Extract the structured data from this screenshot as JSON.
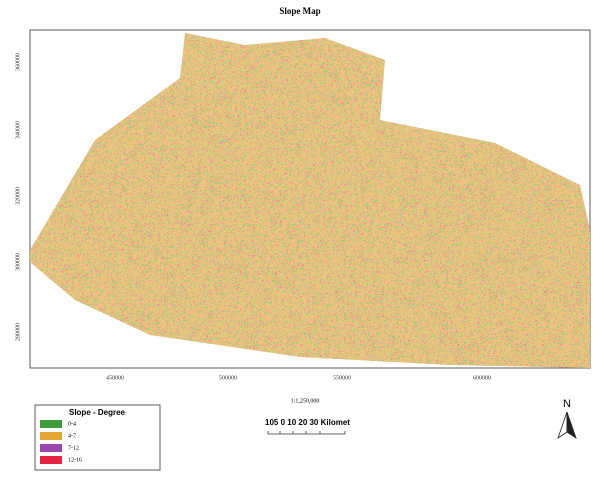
{
  "title": "Slope Map",
  "x_ticks": [
    "450000",
    "500000",
    "550000",
    "600000"
  ],
  "y_ticks": [
    "360000",
    "340000",
    "320000",
    "300000",
    "280000"
  ],
  "scale": "1:1,250,000",
  "scale_bar": "105 0   10  20  30 Kilomet",
  "north": "N",
  "legend": {
    "title": "Slope - Degree",
    "items": [
      {
        "label": "0-4",
        "color": "#3f9b35"
      },
      {
        "label": "4-7",
        "color": "#e3a533"
      },
      {
        "label": "7-12",
        "color": "#9b45b3"
      },
      {
        "label": "12-16",
        "color": "#e3233f"
      }
    ]
  }
}
